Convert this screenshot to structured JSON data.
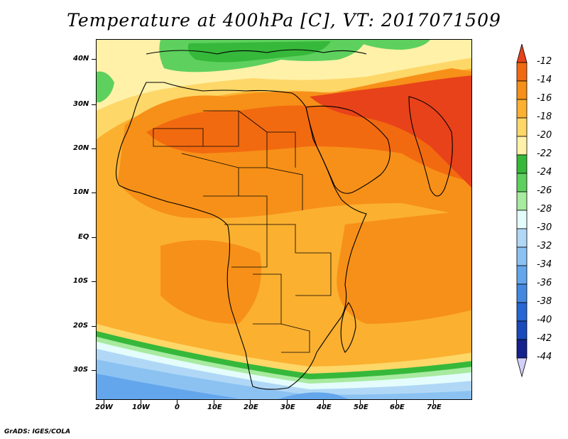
{
  "title": "Temperature at 400hPa [C], VT: 2017071509",
  "credit": "GrADS: IGES/COLA",
  "lat_labels": [
    "40N",
    "30N",
    "20N",
    "10N",
    "EQ",
    "10S",
    "20S",
    "30S"
  ],
  "lon_labels": [
    "20W",
    "10W",
    "0",
    "10E",
    "20E",
    "30E",
    "40E",
    "50E",
    "60E",
    "70E"
  ],
  "legend": {
    "labels": [
      "-12",
      "-14",
      "-16",
      "-18",
      "-20",
      "-22",
      "-24",
      "-26",
      "-28",
      "-30",
      "-32",
      "-34",
      "-36",
      "-38",
      "-40",
      "-42",
      "-44"
    ],
    "colors": [
      "#e8421a",
      "#f26a10",
      "#f79018",
      "#fbb030",
      "#fdd768",
      "#fff1a8",
      "#36b83a",
      "#5ed05e",
      "#a8eaa0",
      "#e4fcfc",
      "#b0d8f6",
      "#8cc2f2",
      "#64a6ec",
      "#4488e0",
      "#2866d4",
      "#1a4abc",
      "#14228c"
    ],
    "top_arrow_color": "#e8421a",
    "bottom_arrow_color": "#d2d0f8"
  },
  "colors": {
    "hot": "#e8421a",
    "warm": "#f26a10",
    "orange": "#f79018",
    "light_orange": "#fbb030",
    "yellow": "#fdd768",
    "pale_yellow": "#fff1a8",
    "green": "#36b83a",
    "light_green": "#5ed05e",
    "pale_green": "#a8eaa0",
    "cyan": "#e4fcfc",
    "light_blue": "#b0d8f6",
    "blue": "#8cc2f2",
    "mid_blue": "#64a6ec",
    "deep_blue": "#4488e0"
  }
}
